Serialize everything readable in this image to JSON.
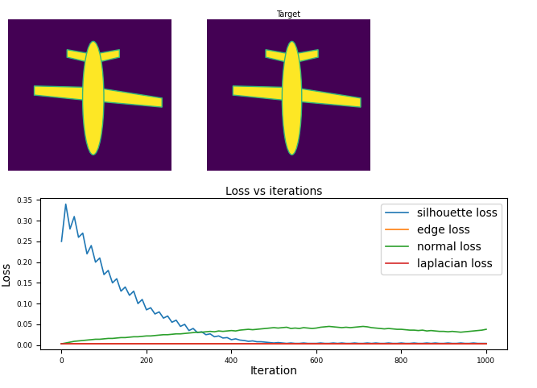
{
  "images": {
    "target_title": "Target"
  },
  "chart_data": {
    "type": "line",
    "title": "Loss vs iterations",
    "x_label": "Iteration",
    "y_label": "Loss",
    "x": [
      0,
      10,
      20,
      30,
      40,
      50,
      60,
      70,
      80,
      90,
      100,
      110,
      120,
      130,
      140,
      150,
      160,
      170,
      180,
      190,
      200,
      210,
      220,
      230,
      240,
      250,
      260,
      270,
      280,
      290,
      300,
      310,
      320,
      330,
      340,
      350,
      360,
      370,
      380,
      390,
      400,
      410,
      420,
      430,
      440,
      450,
      460,
      470,
      480,
      490,
      500,
      510,
      520,
      530,
      540,
      550,
      560,
      570,
      580,
      590,
      600,
      610,
      620,
      630,
      640,
      650,
      660,
      670,
      680,
      690,
      700,
      710,
      720,
      730,
      740,
      750,
      760,
      770,
      780,
      790,
      800,
      810,
      820,
      830,
      840,
      850,
      860,
      870,
      880,
      890,
      900,
      910,
      920,
      930,
      940,
      950,
      960,
      970,
      980,
      990,
      1000
    ],
    "series": [
      {
        "name": "silhouette loss",
        "color": "#1f77b4",
        "values": [
          0.25,
          0.34,
          0.28,
          0.31,
          0.26,
          0.27,
          0.22,
          0.24,
          0.2,
          0.21,
          0.17,
          0.18,
          0.15,
          0.16,
          0.13,
          0.14,
          0.12,
          0.13,
          0.1,
          0.11,
          0.085,
          0.09,
          0.075,
          0.08,
          0.065,
          0.07,
          0.055,
          0.06,
          0.045,
          0.05,
          0.035,
          0.04,
          0.03,
          0.032,
          0.025,
          0.027,
          0.02,
          0.022,
          0.017,
          0.018,
          0.013,
          0.015,
          0.012,
          0.011,
          0.009,
          0.01,
          0.008,
          0.008,
          0.007,
          0.006,
          0.005,
          0.006,
          0.005,
          0.004,
          0.005,
          0.004,
          0.004,
          0.005,
          0.004,
          0.004,
          0.004,
          0.005,
          0.004,
          0.004,
          0.005,
          0.004,
          0.005,
          0.004,
          0.004,
          0.005,
          0.004,
          0.004,
          0.005,
          0.004,
          0.005,
          0.004,
          0.004,
          0.005,
          0.004,
          0.004,
          0.005,
          0.004,
          0.004,
          0.005,
          0.004,
          0.004,
          0.005,
          0.004,
          0.005,
          0.004,
          0.004,
          0.005,
          0.004,
          0.004,
          0.005,
          0.004,
          0.004,
          0.005,
          0.004,
          0.004,
          0.004
        ]
      },
      {
        "name": "edge loss",
        "color": "#ff7f0e",
        "values": [
          0.003,
          0.003,
          0.003,
          0.003,
          0.003,
          0.003,
          0.003,
          0.003,
          0.003,
          0.003,
          0.003,
          0.003,
          0.003,
          0.003,
          0.003,
          0.003,
          0.003,
          0.003,
          0.003,
          0.003,
          0.003,
          0.003,
          0.003,
          0.003,
          0.003,
          0.003,
          0.003,
          0.003,
          0.003,
          0.003,
          0.003,
          0.003,
          0.003,
          0.003,
          0.003,
          0.003,
          0.003,
          0.003,
          0.003,
          0.003,
          0.003,
          0.003,
          0.003,
          0.003,
          0.003,
          0.003,
          0.003,
          0.003,
          0.003,
          0.003,
          0.003,
          0.003,
          0.003,
          0.003,
          0.003,
          0.003,
          0.003,
          0.003,
          0.003,
          0.003,
          0.003,
          0.003,
          0.003,
          0.003,
          0.003,
          0.003,
          0.003,
          0.003,
          0.003,
          0.003,
          0.003,
          0.003,
          0.003,
          0.003,
          0.003,
          0.003,
          0.003,
          0.003,
          0.003,
          0.003,
          0.003,
          0.003,
          0.003,
          0.003,
          0.003,
          0.003,
          0.003,
          0.003,
          0.003,
          0.003,
          0.003,
          0.003,
          0.003,
          0.003,
          0.003,
          0.003,
          0.003,
          0.003,
          0.003,
          0.003,
          0.003
        ]
      },
      {
        "name": "normal loss",
        "color": "#2ca02c",
        "values": [
          0.003,
          0.005,
          0.007,
          0.009,
          0.01,
          0.011,
          0.012,
          0.013,
          0.014,
          0.014,
          0.015,
          0.016,
          0.016,
          0.017,
          0.018,
          0.018,
          0.019,
          0.02,
          0.02,
          0.021,
          0.022,
          0.022,
          0.023,
          0.024,
          0.025,
          0.025,
          0.026,
          0.027,
          0.027,
          0.028,
          0.029,
          0.03,
          0.031,
          0.031,
          0.032,
          0.033,
          0.032,
          0.034,
          0.033,
          0.034,
          0.035,
          0.034,
          0.036,
          0.037,
          0.038,
          0.037,
          0.038,
          0.039,
          0.04,
          0.041,
          0.042,
          0.041,
          0.042,
          0.043,
          0.04,
          0.041,
          0.04,
          0.042,
          0.041,
          0.04,
          0.041,
          0.043,
          0.044,
          0.045,
          0.044,
          0.043,
          0.042,
          0.043,
          0.042,
          0.043,
          0.044,
          0.045,
          0.044,
          0.042,
          0.041,
          0.04,
          0.039,
          0.04,
          0.039,
          0.038,
          0.038,
          0.037,
          0.036,
          0.036,
          0.035,
          0.036,
          0.034,
          0.035,
          0.034,
          0.033,
          0.033,
          0.032,
          0.033,
          0.032,
          0.031,
          0.032,
          0.033,
          0.034,
          0.035,
          0.036,
          0.038
        ]
      },
      {
        "name": "laplacian loss",
        "color": "#d62728",
        "values": [
          0.004,
          0.004,
          0.004,
          0.004,
          0.004,
          0.004,
          0.004,
          0.004,
          0.004,
          0.004,
          0.004,
          0.004,
          0.004,
          0.004,
          0.004,
          0.004,
          0.004,
          0.004,
          0.004,
          0.004,
          0.004,
          0.004,
          0.004,
          0.004,
          0.004,
          0.004,
          0.004,
          0.004,
          0.004,
          0.004,
          0.004,
          0.004,
          0.004,
          0.004,
          0.004,
          0.004,
          0.004,
          0.004,
          0.004,
          0.004,
          0.004,
          0.004,
          0.004,
          0.004,
          0.004,
          0.004,
          0.004,
          0.004,
          0.004,
          0.004,
          0.004,
          0.004,
          0.004,
          0.004,
          0.004,
          0.004,
          0.004,
          0.004,
          0.004,
          0.004,
          0.004,
          0.004,
          0.004,
          0.004,
          0.004,
          0.004,
          0.004,
          0.004,
          0.004,
          0.004,
          0.004,
          0.004,
          0.004,
          0.004,
          0.004,
          0.004,
          0.004,
          0.004,
          0.004,
          0.004,
          0.004,
          0.004,
          0.004,
          0.004,
          0.004,
          0.004,
          0.004,
          0.004,
          0.004,
          0.004,
          0.004,
          0.004,
          0.004,
          0.004,
          0.004,
          0.004,
          0.004,
          0.004,
          0.004,
          0.004,
          0.004
        ]
      }
    ],
    "xlim": [
      -50,
      1050
    ],
    "ylim": [
      -0.01,
      0.355
    ],
    "xticks": [
      0,
      200,
      400,
      600,
      800,
      1000
    ],
    "yticks": [
      {
        "value": 0,
        "label": "0.00"
      },
      {
        "value": 0.05,
        "label": "0.05"
      },
      {
        "value": 0.1,
        "label": "0.10"
      },
      {
        "value": 0.15,
        "label": "0.15"
      },
      {
        "value": 0.2,
        "label": "0.20"
      },
      {
        "value": 0.25,
        "label": "0.25"
      },
      {
        "value": 0.3,
        "label": "0.30"
      },
      {
        "value": 0.35,
        "label": "0.35"
      }
    ],
    "legend": "upper right",
    "grid": false
  }
}
